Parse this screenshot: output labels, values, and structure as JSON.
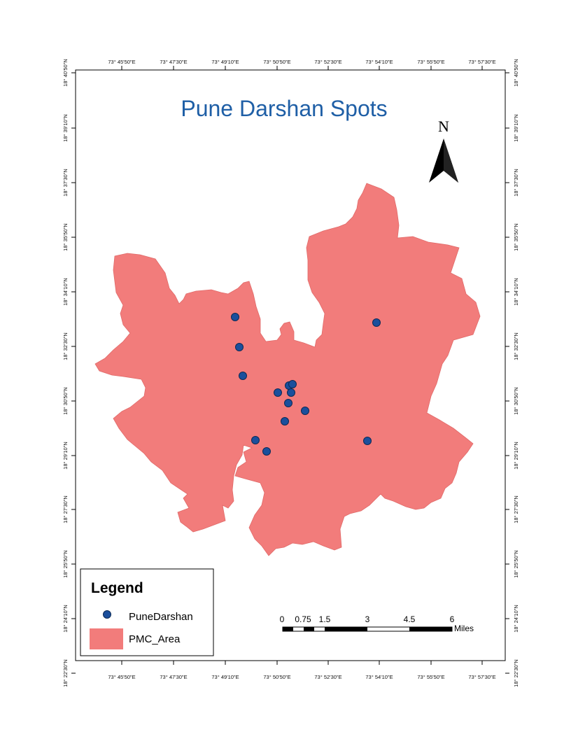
{
  "map": {
    "title": "Pune Darshan Spots",
    "title_color": "#1f5fa6",
    "area_color": "#f27c7b",
    "point_color": "#1b4f9c",
    "north_label": "N"
  },
  "graticule": {
    "top_labels": [
      "73° 45'50\"E",
      "73° 47'30\"E",
      "73° 49'10\"E",
      "73° 50'50\"E",
      "73° 52'30\"E",
      "73° 54'10\"E",
      "73° 55'50\"E",
      "73° 57'30\"E"
    ],
    "bottom_labels": [
      "73° 45'50\"E",
      "73° 47'30\"E",
      "73° 49'10\"E",
      "73° 50'50\"E",
      "73° 52'30\"E",
      "73° 54'10\"E",
      "73° 55'50\"E",
      "73° 57'30\"E"
    ],
    "left_labels": [
      "18° 40'50\"N",
      "18° 39'10\"N",
      "18° 37'30\"N",
      "18° 35'50\"N",
      "18° 34'10\"N",
      "18° 32'30\"N",
      "18° 30'50\"N",
      "18° 29'10\"N",
      "18° 27'30\"N",
      "18° 25'50\"N",
      "18° 24'10\"N",
      "18° 22'30\"N"
    ],
    "right_labels": [
      "18° 40'50\"N",
      "18° 39'10\"N",
      "18° 37'30\"N",
      "18° 35'50\"N",
      "18° 34'10\"N",
      "18° 32'30\"N",
      "18° 30'50\"N",
      "18° 29'10\"N",
      "18° 27'30\"N",
      "18° 25'50\"N",
      "18° 24'10\"N",
      "18° 22'30\"N"
    ]
  },
  "legend": {
    "title": "Legend",
    "items": [
      {
        "label": "PuneDarshan",
        "symbol": "point"
      },
      {
        "label": "PMC_Area",
        "symbol": "polygon"
      }
    ]
  },
  "scale_bar": {
    "ticks": [
      "0",
      "0.75",
      "1.5",
      "3",
      "4.5",
      "6"
    ],
    "unit": "Miles"
  }
}
